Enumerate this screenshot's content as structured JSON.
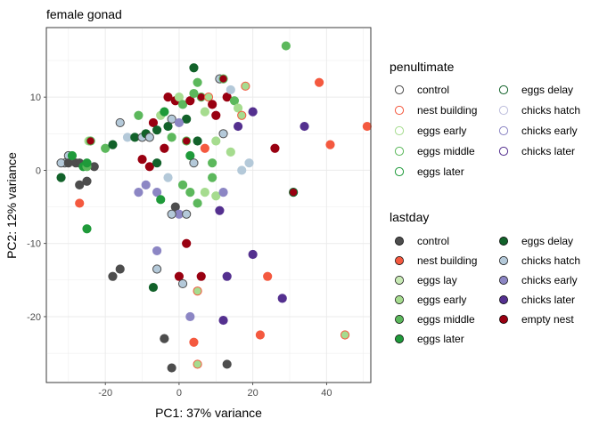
{
  "chart_data": {
    "type": "scatter",
    "title": "female gonad",
    "xlabel": "PC1: 37% variance",
    "ylabel": "PC2: 12% variance",
    "xlim": [
      -36,
      52
    ],
    "ylim": [
      -29,
      19.5
    ],
    "xticks": [
      -20,
      0,
      20,
      40
    ],
    "yticks": [
      -20,
      -10,
      0,
      10
    ],
    "xtick_labels": [
      "-20",
      "0",
      "20",
      "40"
    ],
    "ytick_labels": [
      "-20",
      "-10",
      "0",
      "10"
    ],
    "grid": true,
    "legend_position": "right",
    "legends": [
      {
        "title": "penultimate",
        "marker": "hollow-circle",
        "entries": [
          {
            "label": "control",
            "color": "#4d4d4d"
          },
          {
            "label": "nest building",
            "color": "#f4593f"
          },
          {
            "label": "eggs early",
            "color": "#a6dc8f"
          },
          {
            "label": "eggs middle",
            "color": "#5cb85c"
          },
          {
            "label": "eggs later",
            "color": "#1f9a3a"
          },
          {
            "label": "eggs delay",
            "color": "#12622a"
          },
          {
            "label": "chicks hatch",
            "color": "#bcbddc"
          },
          {
            "label": "chicks early",
            "color": "#8c86c4"
          },
          {
            "label": "chicks later",
            "color": "#54308f"
          }
        ]
      },
      {
        "title": "lastday",
        "marker": "filled-circle",
        "entries": [
          {
            "label": "control",
            "color": "#4d4d4d"
          },
          {
            "label": "nest building",
            "color": "#f4593f"
          },
          {
            "label": "eggs lay",
            "color": "#c7e9b4"
          },
          {
            "label": "eggs early",
            "color": "#a6dc8f"
          },
          {
            "label": "eggs middle",
            "color": "#5cb85c"
          },
          {
            "label": "eggs later",
            "color": "#1f9a3a"
          },
          {
            "label": "eggs delay",
            "color": "#12622a"
          },
          {
            "label": "chicks hatch",
            "color": "#b4c9d9"
          },
          {
            "label": "chicks early",
            "color": "#8c86c4"
          },
          {
            "label": "chicks later",
            "color": "#54308f"
          },
          {
            "label": "empty nest",
            "color": "#990011"
          }
        ]
      }
    ],
    "points": [
      {
        "x": -31,
        "y": 1,
        "fill": "#b4c9d9",
        "stroke": "#4d4d4d"
      },
      {
        "x": -32,
        "y": 1,
        "fill": "#b4c9d9",
        "stroke": "#4d4d4d"
      },
      {
        "x": -30,
        "y": 2,
        "fill": "#b4c9d9",
        "stroke": "#4d4d4d"
      },
      {
        "x": -30,
        "y": 1,
        "fill": "#4d4d4d",
        "stroke": "#4d4d4d"
      },
      {
        "x": -28,
        "y": 1,
        "fill": "#4d4d4d",
        "stroke": "#4d4d4d"
      },
      {
        "x": -27,
        "y": 1,
        "fill": "#4d4d4d",
        "stroke": "#4d4d4d"
      },
      {
        "x": -27,
        "y": -2,
        "fill": "#4d4d4d",
        "stroke": "#4d4d4d"
      },
      {
        "x": -25,
        "y": -1.5,
        "fill": "#4d4d4d",
        "stroke": "#4d4d4d"
      },
      {
        "x": -23,
        "y": 0.5,
        "fill": "#4d4d4d",
        "stroke": "#4d4d4d"
      },
      {
        "x": -29,
        "y": 2,
        "fill": "#1f9a3a",
        "stroke": "#1f9a3a"
      },
      {
        "x": -26,
        "y": 0.5,
        "fill": "#1f9a3a",
        "stroke": "#1f9a3a"
      },
      {
        "x": -25,
        "y": 0.5,
        "fill": "#5cb85c",
        "stroke": "#5cb85c"
      },
      {
        "x": -24.5,
        "y": 4,
        "fill": "#a6dc8f",
        "stroke": "#a6dc8f"
      },
      {
        "x": -25,
        "y": 1,
        "fill": "#1f9a3a",
        "stroke": "#1f9a3a"
      },
      {
        "x": -32,
        "y": -1,
        "fill": "#12622a",
        "stroke": "#12622a"
      },
      {
        "x": -27,
        "y": -4.5,
        "fill": "#f4593f",
        "stroke": "#f4593f"
      },
      {
        "x": -25,
        "y": -8,
        "fill": "#1f9a3a",
        "stroke": "#1f9a3a"
      },
      {
        "x": -24,
        "y": 4,
        "fill": "#990011",
        "stroke": "#5cb85c"
      },
      {
        "x": -20,
        "y": 3,
        "fill": "#5cb85c",
        "stroke": "#5cb85c"
      },
      {
        "x": -18,
        "y": 3.5,
        "fill": "#12622a",
        "stroke": "#12622a"
      },
      {
        "x": -16,
        "y": 6.5,
        "fill": "#b4c9d9",
        "stroke": "#4d4d4d"
      },
      {
        "x": -14,
        "y": 4.5,
        "fill": "#b4c9d9",
        "stroke": "#b4c9d9"
      },
      {
        "x": -12,
        "y": 4.5,
        "fill": "#12622a",
        "stroke": "#12622a"
      },
      {
        "x": -11,
        "y": 7.5,
        "fill": "#5cb85c",
        "stroke": "#5cb85c"
      },
      {
        "x": -10,
        "y": 4.5,
        "fill": "#b4c9d9",
        "stroke": "#4d4d4d"
      },
      {
        "x": -9,
        "y": 5,
        "fill": "#12622a",
        "stroke": "#12622a"
      },
      {
        "x": -8,
        "y": 4.5,
        "fill": "#b4c9d9",
        "stroke": "#4d4d4d"
      },
      {
        "x": -7,
        "y": 6.5,
        "fill": "#990011",
        "stroke": "#990011"
      },
      {
        "x": -6,
        "y": 5.5,
        "fill": "#12622a",
        "stroke": "#12622a"
      },
      {
        "x": -5,
        "y": 7.5,
        "fill": "#a6dc8f",
        "stroke": "#a6dc8f"
      },
      {
        "x": -4,
        "y": 8,
        "fill": "#1f9a3a",
        "stroke": "#1f9a3a"
      },
      {
        "x": -3,
        "y": 6,
        "fill": "#12622a",
        "stroke": "#12622a"
      },
      {
        "x": -3,
        "y": 10,
        "fill": "#990011",
        "stroke": "#990011"
      },
      {
        "x": -2,
        "y": 7,
        "fill": "#b4c9d9",
        "stroke": "#4d4d4d"
      },
      {
        "x": -1,
        "y": 9.5,
        "fill": "#990011",
        "stroke": "#990011"
      },
      {
        "x": 0,
        "y": 10,
        "fill": "#a6dc8f",
        "stroke": "#a6dc8f"
      },
      {
        "x": 1,
        "y": 9,
        "fill": "#5cb85c",
        "stroke": "#5cb85c"
      },
      {
        "x": 2,
        "y": 7,
        "fill": "#12622a",
        "stroke": "#12622a"
      },
      {
        "x": 3,
        "y": 9.5,
        "fill": "#990011",
        "stroke": "#990011"
      },
      {
        "x": 4,
        "y": 10.5,
        "fill": "#5cb85c",
        "stroke": "#5cb85c"
      },
      {
        "x": 4,
        "y": 14,
        "fill": "#12622a",
        "stroke": "#12622a"
      },
      {
        "x": 5,
        "y": 12,
        "fill": "#5cb85c",
        "stroke": "#5cb85c"
      },
      {
        "x": 6,
        "y": 10,
        "fill": "#990011",
        "stroke": "#5cb85c"
      },
      {
        "x": 7,
        "y": 8,
        "fill": "#a6dc8f",
        "stroke": "#a6dc8f"
      },
      {
        "x": 8,
        "y": 10,
        "fill": "#a6dc8f",
        "stroke": "#f4593f"
      },
      {
        "x": 9,
        "y": 9,
        "fill": "#990011",
        "stroke": "#990011"
      },
      {
        "x": 10,
        "y": 7.5,
        "fill": "#990011",
        "stroke": "#990011"
      },
      {
        "x": 11,
        "y": 12.5,
        "fill": "#b4c9d9",
        "stroke": "#4d4d4d"
      },
      {
        "x": 12,
        "y": 12.5,
        "fill": "#990011",
        "stroke": "#5cb85c"
      },
      {
        "x": 13,
        "y": 10,
        "fill": "#990011",
        "stroke": "#990011"
      },
      {
        "x": 14,
        "y": 11,
        "fill": "#b4c9d9",
        "stroke": "#b4c9d9"
      },
      {
        "x": 15,
        "y": 9.5,
        "fill": "#5cb85c",
        "stroke": "#5cb85c"
      },
      {
        "x": 16,
        "y": 8.5,
        "fill": "#a6dc8f",
        "stroke": "#a6dc8f"
      },
      {
        "x": 17,
        "y": 7.5,
        "fill": "#a6dc8f",
        "stroke": "#f4593f"
      },
      {
        "x": 18,
        "y": 11.5,
        "fill": "#a6dc8f",
        "stroke": "#f4593f"
      },
      {
        "x": 20,
        "y": 8,
        "fill": "#54308f",
        "stroke": "#54308f"
      },
      {
        "x": 29,
        "y": 17,
        "fill": "#5cb85c",
        "stroke": "#5cb85c"
      },
      {
        "x": 38,
        "y": 12,
        "fill": "#f4593f",
        "stroke": "#f4593f"
      },
      {
        "x": 34,
        "y": 6,
        "fill": "#54308f",
        "stroke": "#54308f"
      },
      {
        "x": 51,
        "y": 6,
        "fill": "#f4593f",
        "stroke": "#f4593f"
      },
      {
        "x": 41,
        "y": 3.5,
        "fill": "#f4593f",
        "stroke": "#f4593f"
      },
      {
        "x": 26,
        "y": 3,
        "fill": "#990011",
        "stroke": "#990011"
      },
      {
        "x": 31,
        "y": -3,
        "fill": "#990011",
        "stroke": "#12622a"
      },
      {
        "x": -10,
        "y": 1.5,
        "fill": "#990011",
        "stroke": "#990011"
      },
      {
        "x": -8,
        "y": 0.5,
        "fill": "#990011",
        "stroke": "#990011"
      },
      {
        "x": -6,
        "y": 1,
        "fill": "#12622a",
        "stroke": "#12622a"
      },
      {
        "x": -4,
        "y": 3,
        "fill": "#990011",
        "stroke": "#990011"
      },
      {
        "x": -2,
        "y": 4.5,
        "fill": "#5cb85c",
        "stroke": "#5cb85c"
      },
      {
        "x": 0,
        "y": 6.5,
        "fill": "#8c86c4",
        "stroke": "#8c86c4"
      },
      {
        "x": 2,
        "y": 4,
        "fill": "#990011",
        "stroke": "#5cb85c"
      },
      {
        "x": 3,
        "y": 2,
        "fill": "#1f9a3a",
        "stroke": "#1f9a3a"
      },
      {
        "x": 4,
        "y": 1,
        "fill": "#b4c9d9",
        "stroke": "#4d4d4d"
      },
      {
        "x": 5,
        "y": 4,
        "fill": "#12622a",
        "stroke": "#12622a"
      },
      {
        "x": 7,
        "y": 3,
        "fill": "#f4593f",
        "stroke": "#f4593f"
      },
      {
        "x": 9,
        "y": 1,
        "fill": "#5cb85c",
        "stroke": "#5cb85c"
      },
      {
        "x": 10,
        "y": 4,
        "fill": "#a6dc8f",
        "stroke": "#a6dc8f"
      },
      {
        "x": 12,
        "y": 5,
        "fill": "#b4c9d9",
        "stroke": "#4d4d4d"
      },
      {
        "x": 14,
        "y": 2.5,
        "fill": "#a6dc8f",
        "stroke": "#a6dc8f"
      },
      {
        "x": 16,
        "y": 6,
        "fill": "#54308f",
        "stroke": "#54308f"
      },
      {
        "x": 17,
        "y": 0,
        "fill": "#b4c9d9",
        "stroke": "#b4c9d9"
      },
      {
        "x": 19,
        "y": 1,
        "fill": "#b4c9d9",
        "stroke": "#b4c9d9"
      },
      {
        "x": -11,
        "y": -3,
        "fill": "#8c86c4",
        "stroke": "#8c86c4"
      },
      {
        "x": -9,
        "y": -2,
        "fill": "#8c86c4",
        "stroke": "#8c86c4"
      },
      {
        "x": -6,
        "y": -3,
        "fill": "#8c86c4",
        "stroke": "#8c86c4"
      },
      {
        "x": -3,
        "y": -1,
        "fill": "#b4c9d9",
        "stroke": "#b4c9d9"
      },
      {
        "x": -1,
        "y": -5,
        "fill": "#4d4d4d",
        "stroke": "#4d4d4d"
      },
      {
        "x": 0,
        "y": -6,
        "fill": "#8c86c4",
        "stroke": "#8c86c4"
      },
      {
        "x": 1,
        "y": -2,
        "fill": "#5cb85c",
        "stroke": "#5cb85c"
      },
      {
        "x": 3,
        "y": -3,
        "fill": "#5cb85c",
        "stroke": "#5cb85c"
      },
      {
        "x": 5,
        "y": -4.5,
        "fill": "#5cb85c",
        "stroke": "#5cb85c"
      },
      {
        "x": 7,
        "y": -3,
        "fill": "#a6dc8f",
        "stroke": "#a6dc8f"
      },
      {
        "x": 9,
        "y": -1,
        "fill": "#5cb85c",
        "stroke": "#5cb85c"
      },
      {
        "x": 10,
        "y": -3.5,
        "fill": "#a6dc8f",
        "stroke": "#a6dc8f"
      },
      {
        "x": 11,
        "y": -5.5,
        "fill": "#54308f",
        "stroke": "#54308f"
      },
      {
        "x": 12,
        "y": -3,
        "fill": "#8c86c4",
        "stroke": "#8c86c4"
      },
      {
        "x": -5,
        "y": -4,
        "fill": "#1f9a3a",
        "stroke": "#1f9a3a"
      },
      {
        "x": -2,
        "y": -6,
        "fill": "#b4c9d9",
        "stroke": "#4d4d4d"
      },
      {
        "x": 2,
        "y": -6,
        "fill": "#b4c9d9",
        "stroke": "#4d4d4d"
      },
      {
        "x": -18,
        "y": -14.5,
        "fill": "#4d4d4d",
        "stroke": "#4d4d4d"
      },
      {
        "x": -16,
        "y": -13.5,
        "fill": "#4d4d4d",
        "stroke": "#4d4d4d"
      },
      {
        "x": -6,
        "y": -11,
        "fill": "#8c86c4",
        "stroke": "#8c86c4"
      },
      {
        "x": -6,
        "y": -13.5,
        "fill": "#b4c9d9",
        "stroke": "#4d4d4d"
      },
      {
        "x": -7,
        "y": -16,
        "fill": "#12622a",
        "stroke": "#12622a"
      },
      {
        "x": -4,
        "y": -23,
        "fill": "#4d4d4d",
        "stroke": "#4d4d4d"
      },
      {
        "x": -2,
        "y": -27,
        "fill": "#4d4d4d",
        "stroke": "#4d4d4d"
      },
      {
        "x": 0,
        "y": -14.5,
        "fill": "#990011",
        "stroke": "#990011"
      },
      {
        "x": 1,
        "y": -15.5,
        "fill": "#b4c9d9",
        "stroke": "#4d4d4d"
      },
      {
        "x": 2,
        "y": -10,
        "fill": "#990011",
        "stroke": "#990011"
      },
      {
        "x": 3,
        "y": -20,
        "fill": "#8c86c4",
        "stroke": "#8c86c4"
      },
      {
        "x": 4,
        "y": -23.5,
        "fill": "#f4593f",
        "stroke": "#f4593f"
      },
      {
        "x": 5,
        "y": -26.5,
        "fill": "#a6dc8f",
        "stroke": "#f4593f"
      },
      {
        "x": 5,
        "y": -16.5,
        "fill": "#a6dc8f",
        "stroke": "#f4593f"
      },
      {
        "x": 6,
        "y": -14.5,
        "fill": "#990011",
        "stroke": "#990011"
      },
      {
        "x": 12,
        "y": -20.5,
        "fill": "#54308f",
        "stroke": "#54308f"
      },
      {
        "x": 13,
        "y": -26.5,
        "fill": "#4d4d4d",
        "stroke": "#4d4d4d"
      },
      {
        "x": 13,
        "y": -14.5,
        "fill": "#54308f",
        "stroke": "#54308f"
      },
      {
        "x": 20,
        "y": -11.5,
        "fill": "#54308f",
        "stroke": "#54308f"
      },
      {
        "x": 22,
        "y": -22.5,
        "fill": "#f4593f",
        "stroke": "#f4593f"
      },
      {
        "x": 24,
        "y": -14.5,
        "fill": "#f4593f",
        "stroke": "#f4593f"
      },
      {
        "x": 28,
        "y": -17.5,
        "fill": "#54308f",
        "stroke": "#54308f"
      },
      {
        "x": 45,
        "y": -22.5,
        "fill": "#a6dc8f",
        "stroke": "#f4593f"
      }
    ]
  }
}
